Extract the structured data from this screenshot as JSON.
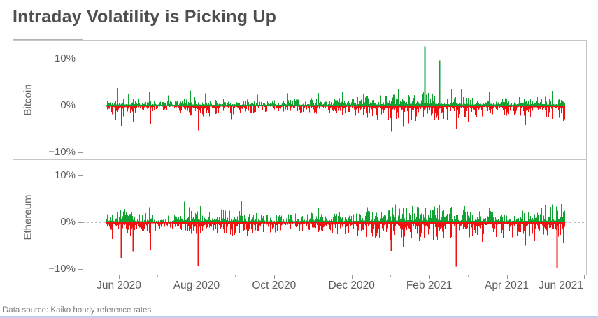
{
  "title": "Intraday Volatility is Picking Up",
  "footer": {
    "text": "Data source: Kaiko hourly reference rates"
  },
  "colors": {
    "bar_up": "#12a233",
    "bar_down": "#ee1111",
    "zero_line": "#bdbdbd",
    "axis_line": "#c8c8c8",
    "axis_text": "#5d5d5d",
    "title_text": "#4f4f4f",
    "footer_text": "#7b7b7b",
    "bottom_strip": "#c3cdf0"
  },
  "chart_data": {
    "type": "bar",
    "title": "Intraday Volatility is Picking Up",
    "unit": "%",
    "ylim": [
      -11.6,
      14.0
    ],
    "grid": "dashed-zero-line-only",
    "legend": "none",
    "y_ticks": [
      {
        "v": 10,
        "label": "10%"
      },
      {
        "v": 0,
        "label": "0%"
      },
      {
        "v": -10,
        "label": "−10%"
      }
    ],
    "x_ticks": [
      {
        "m": 0,
        "label": "Jun 2020"
      },
      {
        "m": 2,
        "label": "Aug 2020"
      },
      {
        "m": 4,
        "label": "Oct 2020"
      },
      {
        "m": 6,
        "label": "Dec 2020"
      },
      {
        "m": 8,
        "label": "Feb 2021"
      },
      {
        "m": 10,
        "label": "Apr 2021"
      },
      {
        "m": 12,
        "label": "Jun 2021"
      }
    ],
    "x_minor_ticks": [
      1,
      3,
      5,
      7,
      9,
      11
    ],
    "panels": [
      {
        "label": "Bitcoin",
        "seed": 1337,
        "envelope": [
          {
            "t": 0.0,
            "up": 1.2,
            "dn": 1.6
          },
          {
            "t": 0.03,
            "up": 1.8,
            "dn": 2.2
          },
          {
            "t": 0.08,
            "up": 1.3,
            "dn": 1.6
          },
          {
            "t": 0.14,
            "up": 0.8,
            "dn": 1.0
          },
          {
            "t": 0.19,
            "up": 1.6,
            "dn": 2.0
          },
          {
            "t": 0.27,
            "up": 1.3,
            "dn": 1.8
          },
          {
            "t": 0.36,
            "up": 0.9,
            "dn": 1.1
          },
          {
            "t": 0.46,
            "up": 1.5,
            "dn": 1.7
          },
          {
            "t": 0.55,
            "up": 1.6,
            "dn": 2.0
          },
          {
            "t": 0.63,
            "up": 2.2,
            "dn": 2.8
          },
          {
            "t": 0.7,
            "up": 2.6,
            "dn": 3.0
          },
          {
            "t": 0.78,
            "up": 1.8,
            "dn": 2.2
          },
          {
            "t": 0.85,
            "up": 1.5,
            "dn": 1.8
          },
          {
            "t": 0.92,
            "up": 1.6,
            "dn": 2.2
          },
          {
            "t": 1.0,
            "up": 2.2,
            "dn": 2.6
          }
        ],
        "spikes": [
          {
            "t": 0.02,
            "v": -3.0
          },
          {
            "t": 0.023,
            "v": 3.7
          },
          {
            "t": 0.032,
            "v": -4.3
          },
          {
            "t": 0.048,
            "v": 2.4
          },
          {
            "t": 0.058,
            "v": -3.6
          },
          {
            "t": 0.093,
            "v": 2.9
          },
          {
            "t": 0.096,
            "v": -3.9
          },
          {
            "t": 0.135,
            "v": 2.2
          },
          {
            "t": 0.183,
            "v": 3.2
          },
          {
            "t": 0.2,
            "v": -5.3
          },
          {
            "t": 0.215,
            "v": 2.6
          },
          {
            "t": 0.271,
            "v": -2.9
          },
          {
            "t": 0.33,
            "v": 2.3
          },
          {
            "t": 0.396,
            "v": 2.6
          },
          {
            "t": 0.462,
            "v": 2.7
          },
          {
            "t": 0.515,
            "v": 2.9
          },
          {
            "t": 0.526,
            "v": -3.2
          },
          {
            "t": 0.56,
            "v": 2.4
          },
          {
            "t": 0.591,
            "v": -3.0
          },
          {
            "t": 0.622,
            "v": -5.6
          },
          {
            "t": 0.637,
            "v": 3.4
          },
          {
            "t": 0.648,
            "v": -4.4
          },
          {
            "t": 0.66,
            "v": -3.8
          },
          {
            "t": 0.695,
            "v": 12.6
          },
          {
            "t": 0.726,
            "v": 9.6
          },
          {
            "t": 0.752,
            "v": 3.4
          },
          {
            "t": 0.764,
            "v": -5.0
          },
          {
            "t": 0.774,
            "v": 3.5
          },
          {
            "t": 0.79,
            "v": -3.4
          },
          {
            "t": 0.835,
            "v": 2.8
          },
          {
            "t": 0.915,
            "v": -4.2
          },
          {
            "t": 0.973,
            "v": 3.1
          },
          {
            "t": 0.983,
            "v": -5.0
          },
          {
            "t": 0.997,
            "v": -3.3
          }
        ]
      },
      {
        "label": "Ethereum",
        "seed": 4242,
        "envelope": [
          {
            "t": 0.0,
            "up": 1.6,
            "dn": 2.2
          },
          {
            "t": 0.03,
            "up": 2.2,
            "dn": 2.8
          },
          {
            "t": 0.08,
            "up": 1.8,
            "dn": 2.2
          },
          {
            "t": 0.14,
            "up": 1.2,
            "dn": 1.5
          },
          {
            "t": 0.19,
            "up": 2.4,
            "dn": 2.8
          },
          {
            "t": 0.24,
            "up": 2.6,
            "dn": 2.6
          },
          {
            "t": 0.3,
            "up": 2.2,
            "dn": 2.6
          },
          {
            "t": 0.38,
            "up": 1.4,
            "dn": 1.7
          },
          {
            "t": 0.46,
            "up": 1.8,
            "dn": 2.0
          },
          {
            "t": 0.55,
            "up": 2.2,
            "dn": 2.6
          },
          {
            "t": 0.63,
            "up": 2.8,
            "dn": 3.4
          },
          {
            "t": 0.7,
            "up": 3.0,
            "dn": 3.4
          },
          {
            "t": 0.78,
            "up": 2.2,
            "dn": 2.8
          },
          {
            "t": 0.85,
            "up": 2.0,
            "dn": 2.6
          },
          {
            "t": 0.92,
            "up": 2.2,
            "dn": 3.0
          },
          {
            "t": 0.97,
            "up": 2.8,
            "dn": 3.4
          },
          {
            "t": 1.0,
            "up": 3.2,
            "dn": 3.6
          }
        ],
        "spikes": [
          {
            "t": 0.012,
            "v": -3.6
          },
          {
            "t": 0.032,
            "v": -7.6
          },
          {
            "t": 0.04,
            "v": 2.8
          },
          {
            "t": 0.058,
            "v": -6.2
          },
          {
            "t": 0.093,
            "v": 3.2
          },
          {
            "t": 0.096,
            "v": -5.9
          },
          {
            "t": 0.114,
            "v": -3.6
          },
          {
            "t": 0.169,
            "v": 4.4
          },
          {
            "t": 0.18,
            "v": 3.2
          },
          {
            "t": 0.2,
            "v": -9.3
          },
          {
            "t": 0.204,
            "v": 3.4
          },
          {
            "t": 0.221,
            "v": 3.4
          },
          {
            "t": 0.236,
            "v": -3.7
          },
          {
            "t": 0.252,
            "v": 3.0
          },
          {
            "t": 0.294,
            "v": 4.5
          },
          {
            "t": 0.302,
            "v": -3.6
          },
          {
            "t": 0.37,
            "v": -2.8
          },
          {
            "t": 0.409,
            "v": 2.8
          },
          {
            "t": 0.462,
            "v": 3.0
          },
          {
            "t": 0.485,
            "v": -3.4
          },
          {
            "t": 0.538,
            "v": -4.6
          },
          {
            "t": 0.569,
            "v": 3.2
          },
          {
            "t": 0.596,
            "v": -3.4
          },
          {
            "t": 0.622,
            "v": -6.1
          },
          {
            "t": 0.63,
            "v": 3.8
          },
          {
            "t": 0.634,
            "v": -5.6
          },
          {
            "t": 0.648,
            "v": -5.2
          },
          {
            "t": 0.668,
            "v": 3.6
          },
          {
            "t": 0.683,
            "v": -4.0
          },
          {
            "t": 0.695,
            "v": 3.9
          },
          {
            "t": 0.713,
            "v": -3.8
          },
          {
            "t": 0.726,
            "v": 3.6
          },
          {
            "t": 0.752,
            "v": 3.3
          },
          {
            "t": 0.764,
            "v": -9.5
          },
          {
            "t": 0.782,
            "v": 3.4
          },
          {
            "t": 0.82,
            "v": -4.2
          },
          {
            "t": 0.835,
            "v": 3.0
          },
          {
            "t": 0.866,
            "v": -3.3
          },
          {
            "t": 0.915,
            "v": -5.0
          },
          {
            "t": 0.934,
            "v": -4.0
          },
          {
            "t": 0.957,
            "v": 3.6
          },
          {
            "t": 0.968,
            "v": -4.8
          },
          {
            "t": 0.973,
            "v": 3.8
          },
          {
            "t": 0.983,
            "v": -9.8
          },
          {
            "t": 0.992,
            "v": 3.9
          },
          {
            "t": 0.997,
            "v": -4.5
          }
        ]
      }
    ]
  }
}
